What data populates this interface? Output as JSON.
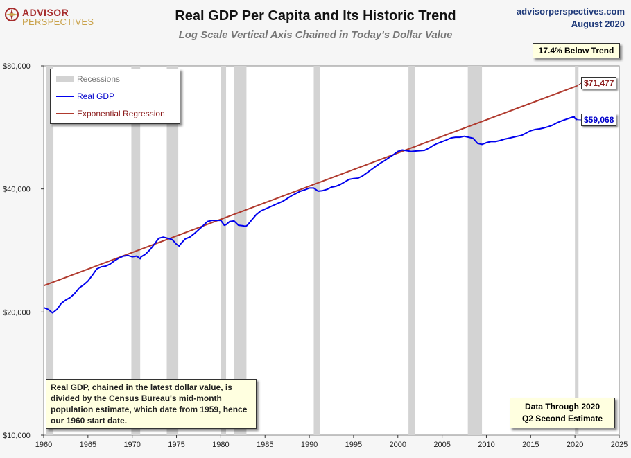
{
  "header": {
    "logo_line1": "ADVISOR",
    "logo_line2": "PERSPECTIVES",
    "site": "advisorperspectives.com",
    "date": "August 2020"
  },
  "callouts": {
    "trend_gap": "17.4% Below Trend",
    "trend_end": "$71,477",
    "gdp_end": "$59,068",
    "data_through_line1": "Data Through 2020",
    "data_through_line2": "Q2 Second Estimate",
    "note": "Real GDP, chained in the latest dollar value, is divided by the Census Bureau's mid-month population estimate, which date from 1959, hence our 1960 start date."
  },
  "colors": {
    "gdp": "#0000ee",
    "trend": "#b03a2e",
    "recession": "#d3d3d3",
    "trend_label": "#8b1a1a",
    "gdp_label": "#0000cc"
  },
  "chart_data": {
    "type": "line",
    "title": "Real GDP Per Capita and Its Historic Trend",
    "subtitle": "Log Scale Vertical Axis Chained in Today's Dollar Value",
    "yscale": "log",
    "xlim": [
      1960,
      2025
    ],
    "ylim": [
      10000,
      80000
    ],
    "x_ticks": [
      "1960",
      "1965",
      "1970",
      "1975",
      "1980",
      "1985",
      "1990",
      "1995",
      "2000",
      "2005",
      "2010",
      "2015",
      "2020",
      "2025"
    ],
    "y_ticks": [
      {
        "value": 10000,
        "label": "$10,000"
      },
      {
        "value": 20000,
        "label": "$20,000"
      },
      {
        "value": 40000,
        "label": "$40,000"
      },
      {
        "value": 80000,
        "label": "$80,000"
      }
    ],
    "grid": false,
    "legend_position": "top-left",
    "legend": [
      "Recessions",
      "Real GDP",
      "Exponential Regression"
    ],
    "recessions": [
      [
        1960.25,
        1961.1
      ],
      [
        1969.9,
        1970.9
      ],
      [
        1973.9,
        1975.2
      ],
      [
        1980.0,
        1980.6
      ],
      [
        1981.5,
        1982.9
      ],
      [
        1990.5,
        1991.2
      ],
      [
        2001.2,
        2001.9
      ],
      [
        2007.9,
        2009.5
      ],
      [
        2020.0,
        2020.4
      ]
    ],
    "series": [
      {
        "name": "Real GDP",
        "points": [
          [
            1960.0,
            20500
          ],
          [
            1960.5,
            20300
          ],
          [
            1961.0,
            19900
          ],
          [
            1961.5,
            20300
          ],
          [
            1962.0,
            21000
          ],
          [
            1962.5,
            21400
          ],
          [
            1963.0,
            21700
          ],
          [
            1963.5,
            22200
          ],
          [
            1964.0,
            22900
          ],
          [
            1964.5,
            23300
          ],
          [
            1965.0,
            23800
          ],
          [
            1965.5,
            24600
          ],
          [
            1966.0,
            25500
          ],
          [
            1966.5,
            25800
          ],
          [
            1967.0,
            25900
          ],
          [
            1967.5,
            26200
          ],
          [
            1968.0,
            26700
          ],
          [
            1968.5,
            27100
          ],
          [
            1969.0,
            27400
          ],
          [
            1969.5,
            27500
          ],
          [
            1970.0,
            27300
          ],
          [
            1970.5,
            27400
          ],
          [
            1970.9,
            27000
          ],
          [
            1971.0,
            27300
          ],
          [
            1971.5,
            27700
          ],
          [
            1972.0,
            28400
          ],
          [
            1972.5,
            29300
          ],
          [
            1973.0,
            30300
          ],
          [
            1973.5,
            30500
          ],
          [
            1974.0,
            30300
          ],
          [
            1974.5,
            30100
          ],
          [
            1975.0,
            29300
          ],
          [
            1975.3,
            29000
          ],
          [
            1975.5,
            29400
          ],
          [
            1976.0,
            30200
          ],
          [
            1976.5,
            30500
          ],
          [
            1977.0,
            31100
          ],
          [
            1977.5,
            31800
          ],
          [
            1978.0,
            32500
          ],
          [
            1978.5,
            33300
          ],
          [
            1979.0,
            33500
          ],
          [
            1979.5,
            33500
          ],
          [
            1980.0,
            33500
          ],
          [
            1980.4,
            32600
          ],
          [
            1980.6,
            32700
          ],
          [
            1981.0,
            33300
          ],
          [
            1981.5,
            33400
          ],
          [
            1982.0,
            32600
          ],
          [
            1982.5,
            32500
          ],
          [
            1982.8,
            32400
          ],
          [
            1983.0,
            32600
          ],
          [
            1983.5,
            33600
          ],
          [
            1984.0,
            34600
          ],
          [
            1984.5,
            35300
          ],
          [
            1985.0,
            35700
          ],
          [
            1985.5,
            36100
          ],
          [
            1986.0,
            36500
          ],
          [
            1986.5,
            36900
          ],
          [
            1987.0,
            37300
          ],
          [
            1987.5,
            37900
          ],
          [
            1988.0,
            38500
          ],
          [
            1988.5,
            39000
          ],
          [
            1989.0,
            39500
          ],
          [
            1989.5,
            39800
          ],
          [
            1990.0,
            40200
          ],
          [
            1990.5,
            40200
          ],
          [
            1991.0,
            39500
          ],
          [
            1991.5,
            39600
          ],
          [
            1992.0,
            39900
          ],
          [
            1992.5,
            40400
          ],
          [
            1993.0,
            40600
          ],
          [
            1993.5,
            41000
          ],
          [
            1994.0,
            41600
          ],
          [
            1994.5,
            42200
          ],
          [
            1995.0,
            42400
          ],
          [
            1995.5,
            42500
          ],
          [
            1996.0,
            43000
          ],
          [
            1996.5,
            43800
          ],
          [
            1997.0,
            44600
          ],
          [
            1997.5,
            45400
          ],
          [
            1998.0,
            46200
          ],
          [
            1998.5,
            46900
          ],
          [
            1999.0,
            47700
          ],
          [
            1999.5,
            48500
          ],
          [
            2000.0,
            49400
          ],
          [
            2000.5,
            49800
          ],
          [
            2001.0,
            49600
          ],
          [
            2001.5,
            49400
          ],
          [
            2002.0,
            49500
          ],
          [
            2002.5,
            49600
          ],
          [
            2003.0,
            49700
          ],
          [
            2003.5,
            50300
          ],
          [
            2004.0,
            51100
          ],
          [
            2004.5,
            51700
          ],
          [
            2005.0,
            52200
          ],
          [
            2005.5,
            52700
          ],
          [
            2006.0,
            53300
          ],
          [
            2006.5,
            53500
          ],
          [
            2007.0,
            53500
          ],
          [
            2007.5,
            53800
          ],
          [
            2008.0,
            53500
          ],
          [
            2008.5,
            53200
          ],
          [
            2009.0,
            51700
          ],
          [
            2009.5,
            51400
          ],
          [
            2010.0,
            51900
          ],
          [
            2010.5,
            52200
          ],
          [
            2011.0,
            52200
          ],
          [
            2011.5,
            52500
          ],
          [
            2012.0,
            52900
          ],
          [
            2012.5,
            53200
          ],
          [
            2013.0,
            53500
          ],
          [
            2013.5,
            53800
          ],
          [
            2014.0,
            54100
          ],
          [
            2014.5,
            54800
          ],
          [
            2015.0,
            55500
          ],
          [
            2015.5,
            55900
          ],
          [
            2016.0,
            56100
          ],
          [
            2016.5,
            56400
          ],
          [
            2017.0,
            56800
          ],
          [
            2017.5,
            57300
          ],
          [
            2018.0,
            58100
          ],
          [
            2018.5,
            58700
          ],
          [
            2019.0,
            59200
          ],
          [
            2019.5,
            59700
          ],
          [
            2019.9,
            60100
          ],
          [
            2020.0,
            59500
          ],
          [
            2020.25,
            59068
          ]
        ]
      },
      {
        "name": "Exponential Regression",
        "points": [
          [
            1960.0,
            23200
          ],
          [
            2020.25,
            71477
          ]
        ]
      }
    ]
  }
}
